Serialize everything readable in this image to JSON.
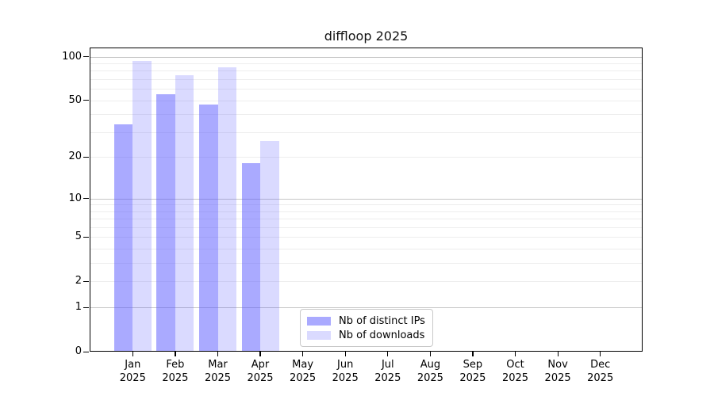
{
  "window": {
    "title": "diffloop 2025"
  },
  "chart_data": {
    "type": "bar",
    "title": "diffloop 2025",
    "categories": [
      "Jan",
      "Feb",
      "Mar",
      "Apr",
      "May",
      "Jun",
      "Jul",
      "Aug",
      "Sep",
      "Oct",
      "Nov",
      "Dec"
    ],
    "category_year": "2025",
    "series": [
      {
        "name": "Nb of distinct IPs",
        "color": "rgba(85,85,255,0.50)",
        "values": [
          34,
          55,
          47,
          18,
          0,
          0,
          0,
          0,
          0,
          0,
          0,
          0
        ]
      },
      {
        "name": "Nb of downloads",
        "color": "rgba(85,85,255,0.22)",
        "values": [
          93,
          75,
          84,
          26,
          0,
          0,
          0,
          0,
          0,
          0,
          0,
          0
        ]
      }
    ],
    "xlabel": "",
    "ylabel": "",
    "yscale": "log1p",
    "ytick_labels": [
      0,
      1,
      2,
      5,
      10,
      20,
      50,
      100
    ],
    "minor_grid_values": [
      1,
      2,
      3,
      4,
      5,
      6,
      7,
      8,
      9,
      10,
      20,
      30,
      40,
      50,
      60,
      70,
      80,
      90,
      100
    ],
    "major_grid_values": [
      1,
      10,
      100
    ],
    "ylim": [
      0,
      115
    ],
    "grid": "horizontal",
    "legend_position": "inside-bottom-center-left",
    "colors": {
      "distinct_ips": "#aaaaff",
      "downloads": "#d9d9ff",
      "axis": "#000000",
      "grid_major": "#c6c6c6",
      "grid_minor": "#ededed"
    }
  }
}
